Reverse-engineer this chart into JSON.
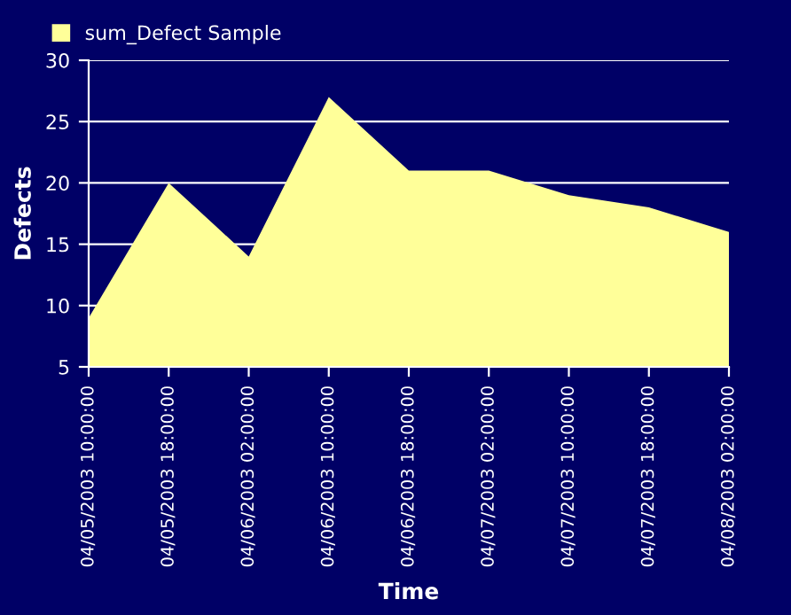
{
  "chart_data": {
    "type": "area",
    "xlabel": "Time",
    "ylabel": "Defects",
    "categories": [
      "04/05/2003 10:00:00",
      "04/05/2003 18:00:00",
      "04/06/2003 02:00:00",
      "04/06/2003 10:00:00",
      "04/06/2003 18:00:00",
      "04/07/2003 02:00:00",
      "04/07/2003 10:00:00",
      "04/07/2003 18:00:00",
      "04/08/2003 02:00:00"
    ],
    "series": [
      {
        "name": "sum_Defect Sample",
        "color": "#ffff99",
        "values": [
          9,
          20,
          14,
          27,
          21,
          21,
          19,
          18,
          16
        ]
      }
    ],
    "ylim": [
      5,
      30
    ],
    "yticks": [
      5,
      10,
      15,
      20,
      25,
      30
    ],
    "grid": "y",
    "legend": "top left"
  }
}
